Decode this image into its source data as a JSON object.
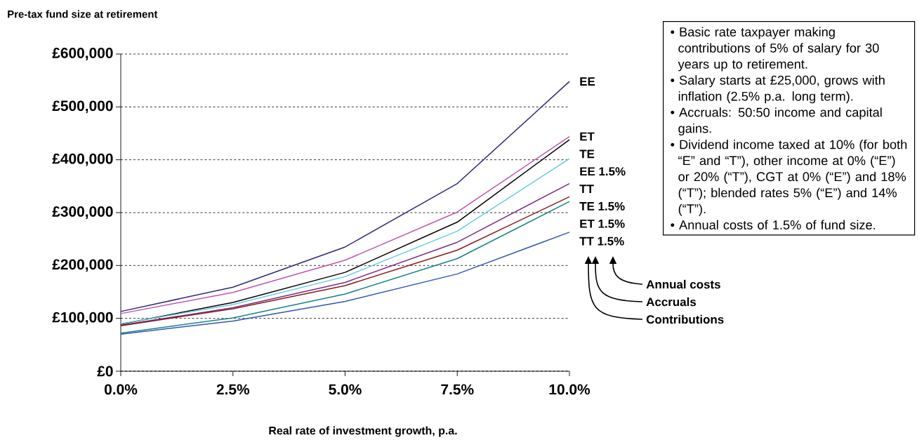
{
  "chart_data": {
    "type": "line",
    "ylabel": "Pre-tax fund size at retirement",
    "xlabel": "Real rate of investment growth, p.a.",
    "x": [
      0,
      2.5,
      5,
      7.5,
      10
    ],
    "xlim": [
      0,
      10
    ],
    "xticks": [
      {
        "value": 0,
        "label": "0.0%"
      },
      {
        "value": 2.5,
        "label": "2.5%"
      },
      {
        "value": 5,
        "label": "5.0%"
      },
      {
        "value": 7.5,
        "label": "7.5%"
      },
      {
        "value": 10,
        "label": "10.0%"
      }
    ],
    "ylim": [
      0,
      600000
    ],
    "yticks": [
      {
        "value": 0,
        "label": "£0"
      },
      {
        "value": 100000,
        "label": "£100,000"
      },
      {
        "value": 200000,
        "label": "£200,000"
      },
      {
        "value": 300000,
        "label": "£300,000"
      },
      {
        "value": 400000,
        "label": "£400,000"
      },
      {
        "value": 500000,
        "label": "£500,000"
      },
      {
        "value": 600000,
        "label": "£600,000"
      }
    ],
    "grid": "y",
    "line_style": "solid",
    "series": [
      {
        "name": "EE",
        "color": "#2b2a7a",
        "values": [
          113000,
          159000,
          235000,
          355000,
          548000
        ]
      },
      {
        "name": "ET",
        "color": "#c055b0",
        "values": [
          109000,
          149000,
          210000,
          301000,
          444000
        ]
      },
      {
        "name": "TE",
        "color": "#000000",
        "values": [
          89000,
          130000,
          187000,
          282000,
          438000
        ]
      },
      {
        "name": "EE 1.5%",
        "color": "#66cce0",
        "values": [
          90000,
          126000,
          179000,
          265000,
          402000
        ]
      },
      {
        "name": "TT",
        "color": "#7b2a85",
        "values": [
          87000,
          120000,
          168000,
          244000,
          355000
        ]
      },
      {
        "name": "TE 1.5%",
        "color": "#8b1a1a",
        "values": [
          86000,
          118000,
          162000,
          229000,
          330000
        ]
      },
      {
        "name": "ET 1.5%",
        "color": "#138585",
        "values": [
          72000,
          101000,
          146000,
          213000,
          321000
        ]
      },
      {
        "name": "TT 1.5%",
        "color": "#3355b5",
        "values": [
          70000,
          95000,
          132000,
          184000,
          263000
        ]
      }
    ],
    "annotations": [
      "• Basic rate taxpayer making contributions of 5% of salary for 30 years up to retirement.",
      "• Salary starts at £25,000, grows with inflation (2.5% p.a. long term).",
      "• Accruals: 50:50 income and capital gains.",
      "• Dividend income taxed at 10% (for both “E” and “T”), other income at 0% (“E”) or 20% (“T”), CGT at 0% (“E”) and 18% (“T”); blended rates 5% (“E”) and 14% (“T”).",
      "• Annual costs of 1.5% of fund size.",
      "Annual costs",
      "Accruals",
      "Contributions"
    ]
  }
}
